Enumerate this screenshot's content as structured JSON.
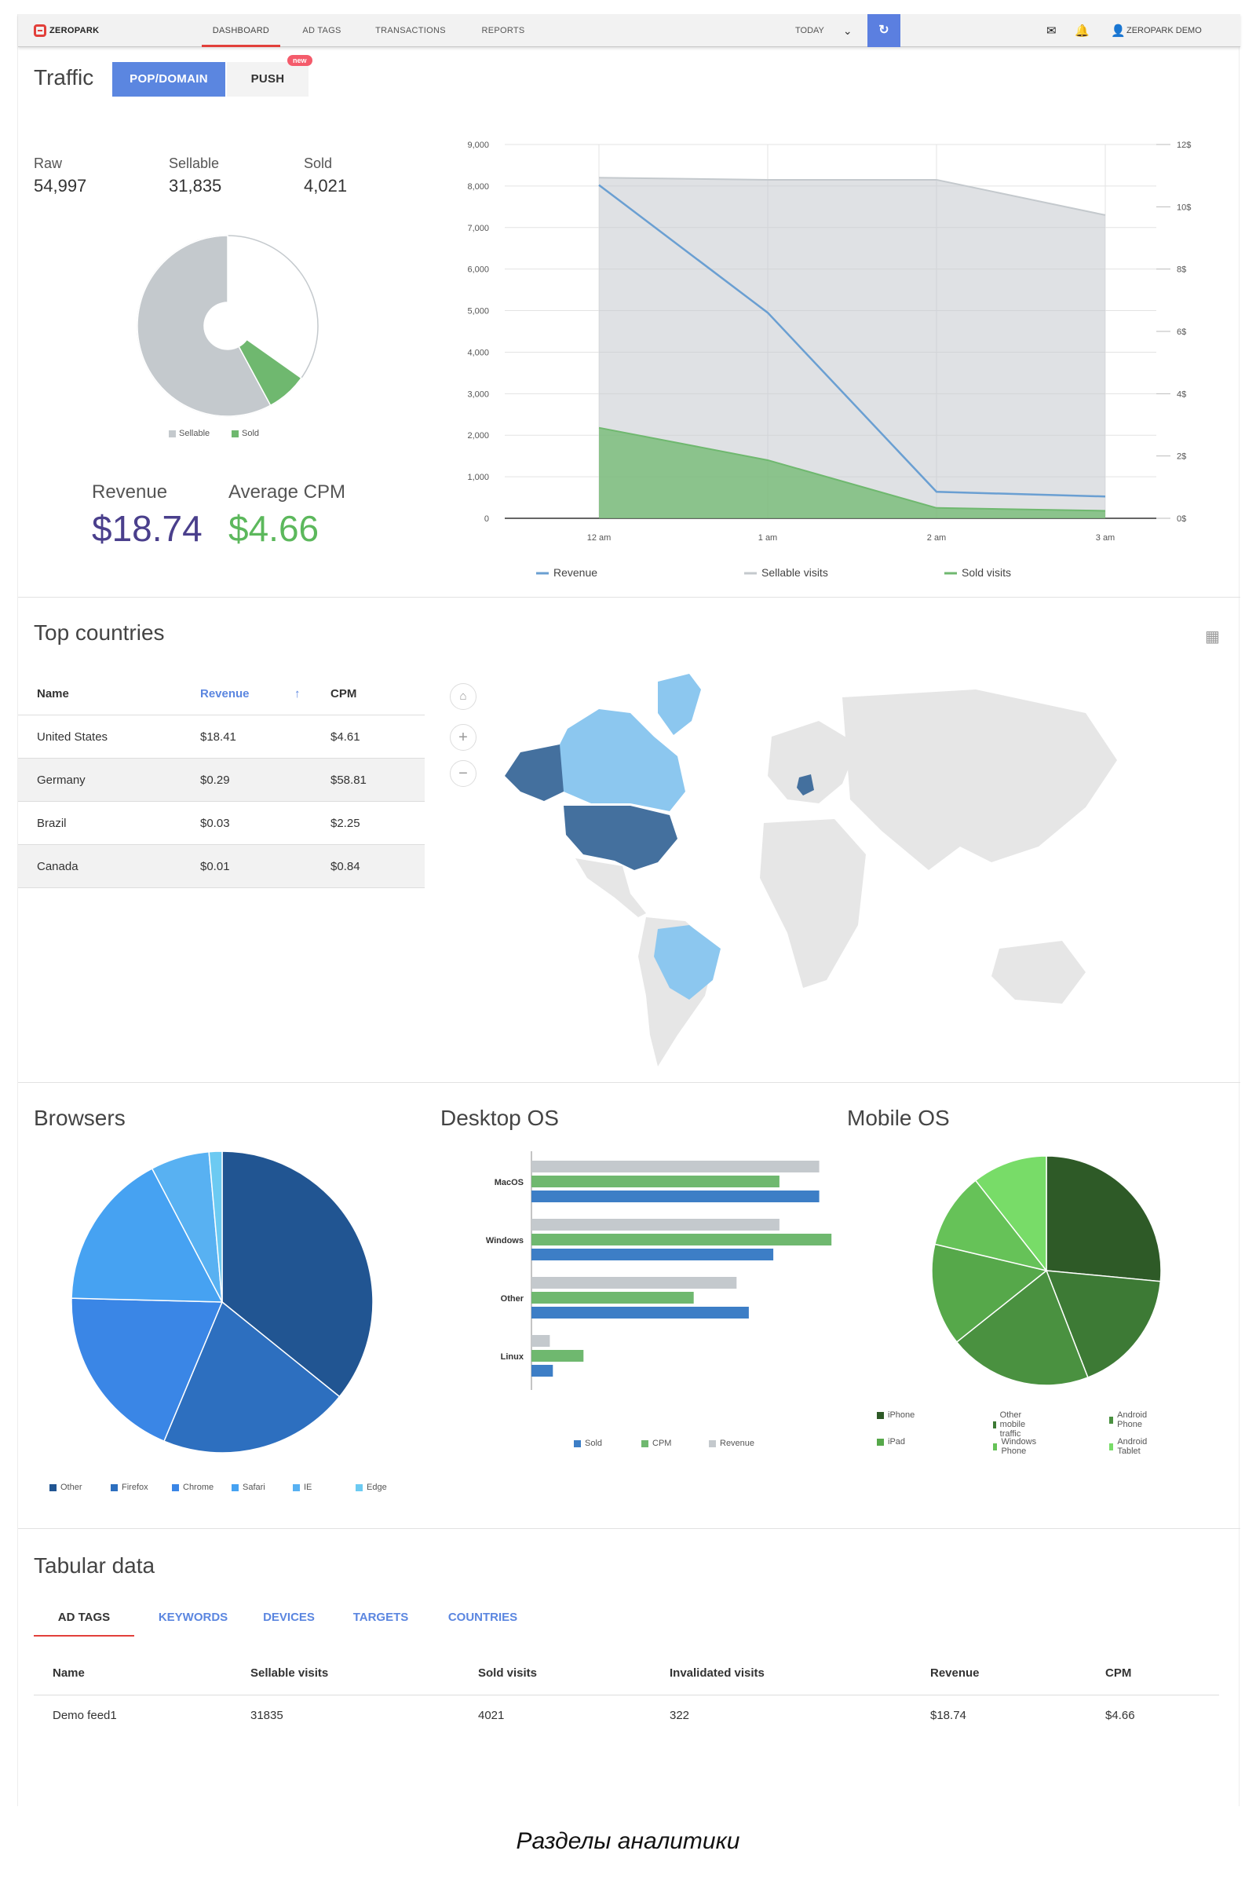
{
  "nav": {
    "logo": "ZEROPARK",
    "items": [
      "DASHBOARD",
      "AD TAGS",
      "TRANSACTIONS",
      "REPORTS"
    ],
    "range": "TODAY",
    "user": "ZEROPARK DEMO"
  },
  "traffic": {
    "title": "Traffic",
    "tabs": [
      "POP/DOMAIN",
      "PUSH"
    ],
    "badge": "new",
    "raw_label": "Raw",
    "raw_value": "54,997",
    "sellable_label": "Sellable",
    "sellable_value": "31,835",
    "sold_label": "Sold",
    "sold_value": "4,021",
    "donut_legend": [
      "Sellable",
      "Sold"
    ],
    "revenue_label": "Revenue",
    "revenue_value": "$18.74",
    "cpm_label": "Average CPM",
    "cpm_value": "$4.66"
  },
  "colors": {
    "accent": "#5b86e0",
    "brand_red": "#e2403b",
    "revenue_kpi": "#4a3f8c",
    "cpm_kpi": "#5cb85c"
  },
  "chart_data": [
    {
      "type": "line",
      "title": "",
      "x": [
        "12 am",
        "1 am",
        "2 am",
        "3 am"
      ],
      "ylim_left": [
        0,
        9000
      ],
      "yticks_left": [
        "0",
        "1,000",
        "2,000",
        "3,000",
        "4,000",
        "5,000",
        "6,000",
        "7,000",
        "8,000",
        "9,000"
      ],
      "ylim_right": [
        0,
        12
      ],
      "yticks_right": [
        "0$",
        "2$",
        "4$",
        "6$",
        "8$",
        "10$",
        "12$"
      ],
      "series": [
        {
          "name": "Revenue",
          "axis": "right",
          "color": "#6a9fd2",
          "values": [
            10.7,
            6.6,
            0.85,
            0.7
          ]
        },
        {
          "name": "Sellable visits",
          "axis": "left",
          "color": "#c4c9cd",
          "values": [
            8200,
            8150,
            8150,
            7300
          ]
        },
        {
          "name": "Sold visits",
          "axis": "left",
          "color": "#6fb86f",
          "values": [
            2180,
            1400,
            250,
            180
          ]
        }
      ],
      "legend": [
        "Revenue",
        "Sellable visits",
        "Sold visits"
      ],
      "grid": true
    },
    {
      "type": "pie",
      "title": "Browsers",
      "series": [
        {
          "name": "Other",
          "value": 35.8,
          "color": "#215592"
        },
        {
          "name": "Firefox",
          "value": 20.5,
          "color": "#2d6fbf"
        },
        {
          "name": "Chrome",
          "value": 19.1,
          "color": "#3a86e6"
        },
        {
          "name": "Safari",
          "value": 16.9,
          "color": "#46a2f2"
        },
        {
          "name": "IE",
          "value": 6.3,
          "color": "#58b1f2"
        },
        {
          "name": "Edge",
          "value": 1.4,
          "color": "#6ccaf2"
        }
      ]
    },
    {
      "type": "bar",
      "title": "Desktop OS",
      "orientation": "horizontal",
      "categories": [
        "MacOS",
        "Windows",
        "Other",
        "Linux"
      ],
      "xlim": [
        0,
        100
      ],
      "series": [
        {
          "name": "Revenue",
          "color": "#c4c9cd",
          "values": [
            94,
            81,
            67,
            6
          ]
        },
        {
          "name": "CPM",
          "color": "#6fb86f",
          "values": [
            81,
            98,
            53,
            17
          ]
        },
        {
          "name": "Sold",
          "color": "#3d7ec6",
          "values": [
            94,
            79,
            71,
            7
          ]
        }
      ],
      "legend": [
        "Sold",
        "CPM",
        "Revenue"
      ]
    },
    {
      "type": "pie",
      "title": "Mobile OS",
      "series": [
        {
          "name": "iPhone",
          "value": 26.5,
          "color": "#2e5a27"
        },
        {
          "name": "Other mobile traffic",
          "value": 17.6,
          "color": "#3d7a35"
        },
        {
          "name": "Android Phone",
          "value": 20.2,
          "color": "#4a9140"
        },
        {
          "name": "iPad",
          "value": 14.4,
          "color": "#56a84a"
        },
        {
          "name": "Windows Phone",
          "value": 10.7,
          "color": "#66c258"
        },
        {
          "name": "Android Tablet",
          "value": 10.6,
          "color": "#78dc68"
        }
      ]
    }
  ],
  "countries": {
    "title": "Top countries",
    "headers": [
      "Name",
      "Revenue",
      "CPM"
    ],
    "rows": [
      [
        "United States",
        "$18.41",
        "$4.61"
      ],
      [
        "Germany",
        "$0.29",
        "$58.81"
      ],
      [
        "Brazil",
        "$0.03",
        "$2.25"
      ],
      [
        "Canada",
        "$0.01",
        "$0.84"
      ]
    ]
  },
  "lower": {
    "browsers_title": "Browsers",
    "desktop_title": "Desktop OS",
    "mobile_title": "Mobile OS"
  },
  "tabular": {
    "title": "Tabular data",
    "tabs": [
      "AD TAGS",
      "KEYWORDS",
      "DEVICES",
      "TARGETS",
      "COUNTRIES"
    ],
    "headers": [
      "Name",
      "Sellable visits",
      "Sold visits",
      "Invalidated visits",
      "Revenue",
      "CPM"
    ],
    "rows": [
      [
        "Demo feed1",
        "31835",
        "4021",
        "322",
        "$18.74",
        "$4.66"
      ]
    ]
  },
  "caption": "Разделы аналитики"
}
